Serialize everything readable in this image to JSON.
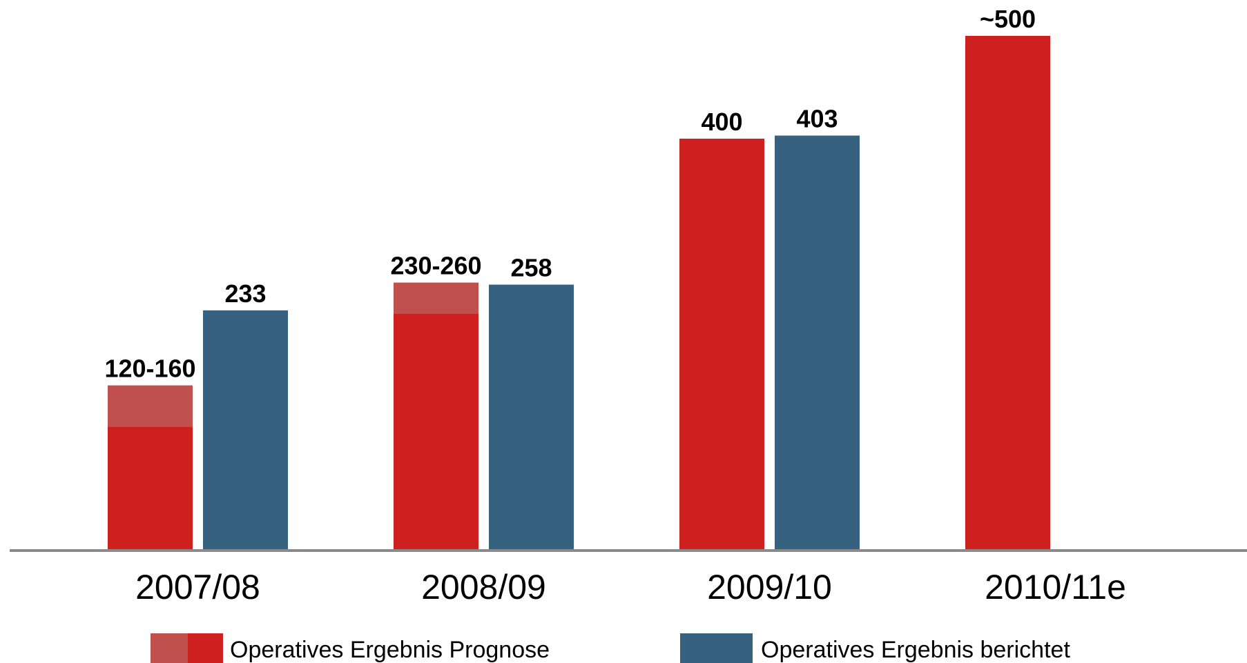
{
  "chart_data": {
    "type": "bar",
    "categories": [
      "2007/08",
      "2008/09",
      "2009/10",
      "2010/11e"
    ],
    "ylim": [
      0,
      500
    ],
    "grid": false,
    "legend_position": "bottom",
    "colors": {
      "forecast": "#cf2020",
      "forecast_range": "#c0504d",
      "reported": "#366280",
      "baseline": "#8a8a8a"
    },
    "series": [
      {
        "name": "Operatives Ergebnis Prognose",
        "low": [
          120,
          230,
          400,
          500
        ],
        "high": [
          160,
          260,
          400,
          500
        ],
        "labels": [
          "120-160",
          "230-260",
          "400",
          "~500"
        ]
      },
      {
        "name": "Operatives Ergebnis berichtet",
        "values": [
          233,
          258,
          403,
          null
        ],
        "labels": [
          "233",
          "258",
          "403",
          ""
        ]
      }
    ]
  }
}
